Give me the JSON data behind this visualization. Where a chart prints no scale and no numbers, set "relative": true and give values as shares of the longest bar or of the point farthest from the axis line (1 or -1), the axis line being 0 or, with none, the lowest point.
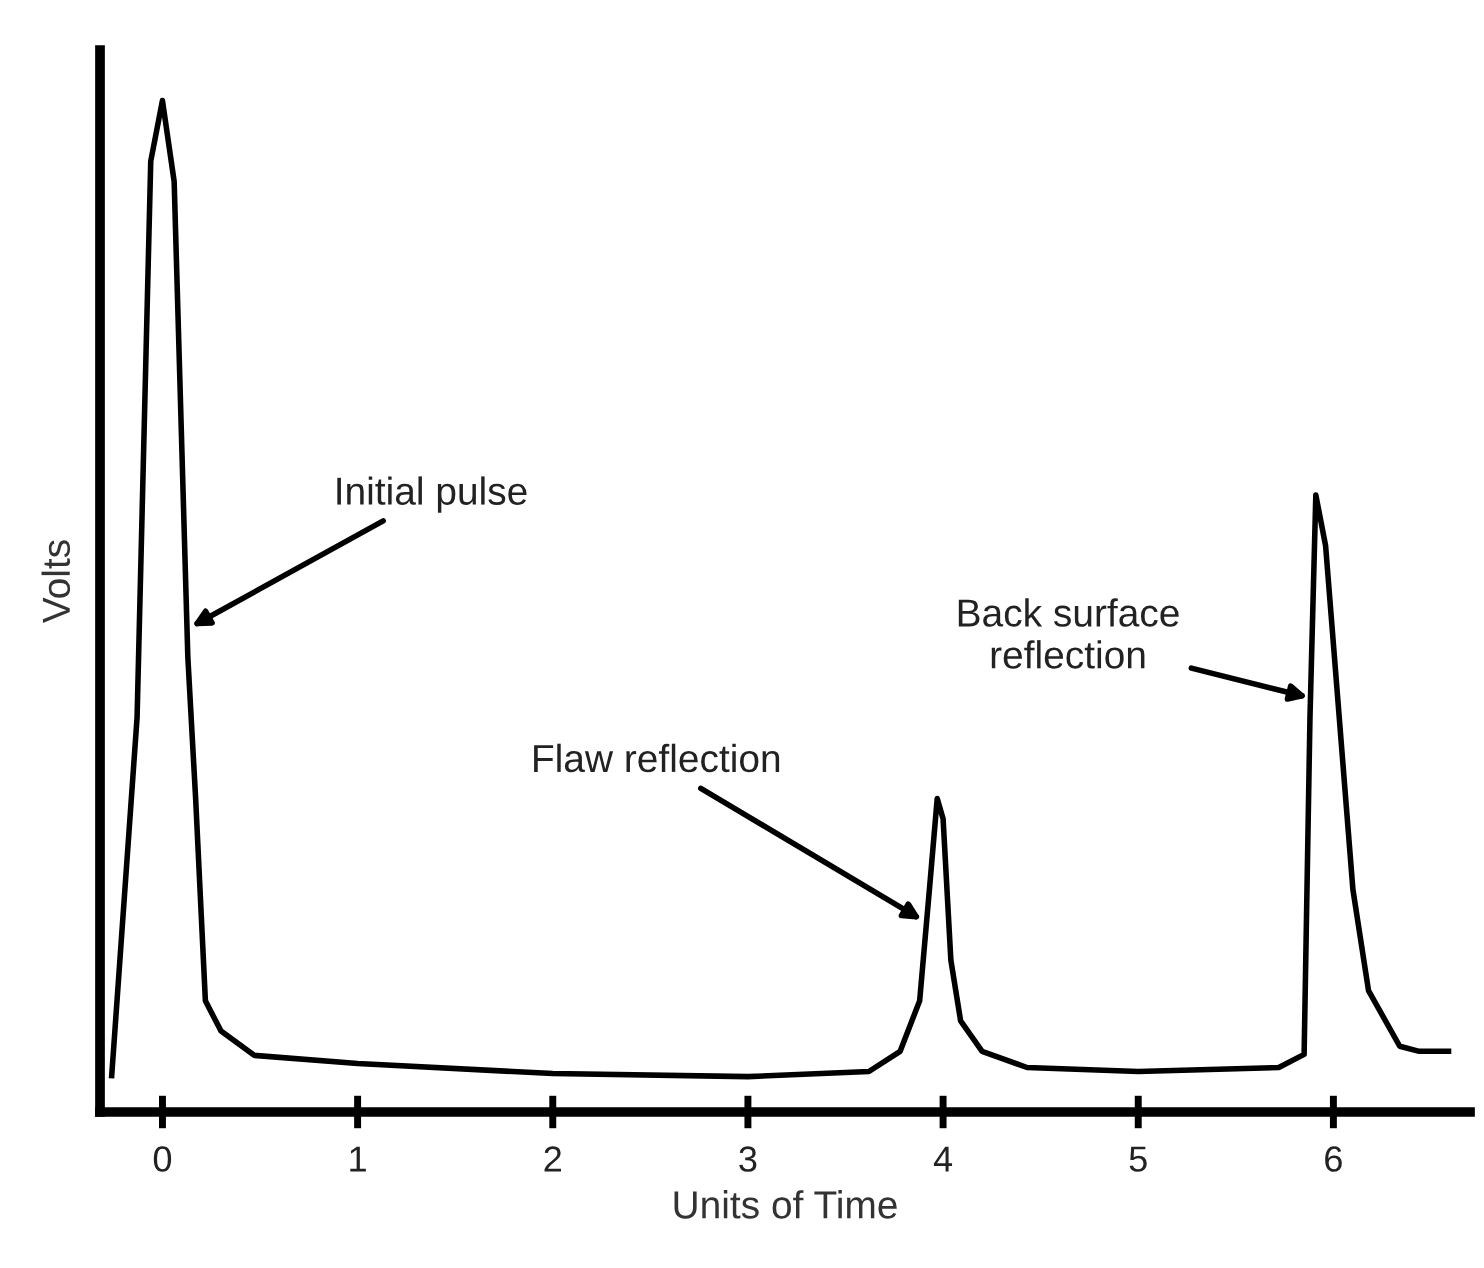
{
  "chart_data": {
    "type": "line",
    "relative": true,
    "xlabel": "Units of Time",
    "ylabel": "Volts",
    "color": "#000000",
    "x": [
      -0.26,
      -0.13,
      -0.06,
      0,
      0.06,
      0.13,
      0.17,
      0.22,
      0.3,
      0.47,
      1,
      2,
      3,
      3.62,
      3.78,
      3.88,
      3.93,
      3.97,
      4.0,
      4.04,
      4.09,
      4.2,
      4.43,
      5,
      5.72,
      5.85,
      5.88,
      5.91,
      5.96,
      6.03,
      6.1,
      6.18,
      6.34,
      6.44,
      6.59
    ],
    "values": [
      0.036,
      0.39,
      0.94,
      1,
      0.92,
      0.45,
      0.31,
      0.11,
      0.08,
      0.056,
      0.048,
      0.038,
      0.035,
      0.04,
      0.06,
      0.11,
      0.22,
      0.31,
      0.29,
      0.15,
      0.09,
      0.06,
      0.044,
      0.04,
      0.044,
      0.057,
      0.39,
      0.61,
      0.56,
      0.39,
      0.22,
      0.12,
      0.065,
      0.06,
      0.06
    ],
    "xlim": [
      -0.32,
      6.7
    ],
    "xticks": [
      0,
      1,
      2,
      3,
      4,
      5,
      6
    ],
    "grid": false,
    "marker": "none",
    "line_style": "solid",
    "annotations": [
      {
        "text": "Initial pulse",
        "x": 0.15,
        "y": 0.48
      },
      {
        "text": "Flaw reflection",
        "x": 3.89,
        "y": 0.19
      },
      {
        "text": "Back surface\nreflection",
        "x": 5.87,
        "y": 0.41
      }
    ]
  }
}
